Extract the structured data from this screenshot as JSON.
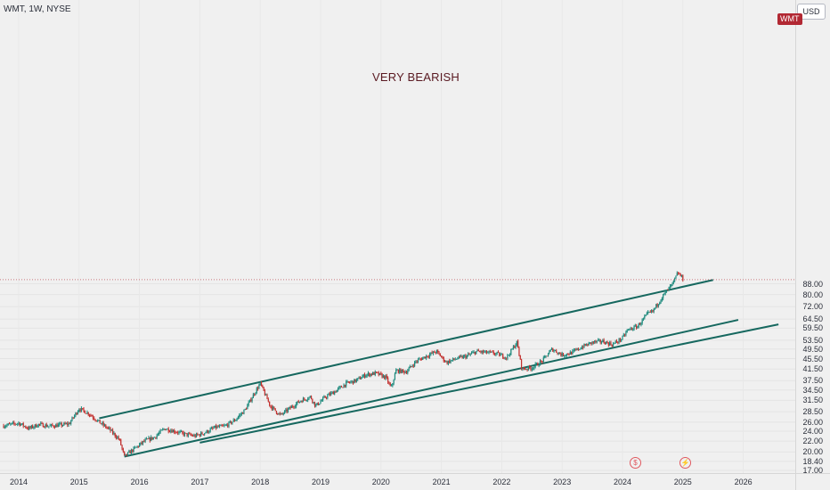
{
  "header": {
    "symbol_title": "WMT, 1W, NYSE"
  },
  "price_scale": {
    "currency": "USD",
    "last_price_tag": "WMT",
    "labels": [
      "88.00",
      "80.00",
      "72.00",
      "64.50",
      "59.50",
      "53.50",
      "49.50",
      "45.50",
      "41.50",
      "37.50",
      "34.50",
      "31.50",
      "28.50",
      "26.00",
      "24.00",
      "22.00",
      "20.00",
      "18.40",
      "17.00"
    ]
  },
  "time_scale": {
    "labels": [
      "2014",
      "2015",
      "2016",
      "2017",
      "2018",
      "2019",
      "2020",
      "2021",
      "2022",
      "2023",
      "2024",
      "2025",
      "2026"
    ]
  },
  "annotation": {
    "text": "VERY BEARISH"
  },
  "events": [
    {
      "icon": "dividend-icon",
      "glyph": "$"
    },
    {
      "icon": "earnings-icon",
      "glyph": "⚡"
    }
  ],
  "colors": {
    "up": "#1e8a7d",
    "down": "#c2312f",
    "trendline": "#16685f",
    "tag": "#b22833"
  },
  "chart_data": {
    "type": "candlestick",
    "title": "WMT, 1W, NYSE",
    "scale": "log",
    "ylim": [
      17,
      98
    ],
    "xlim": [
      "2013-10",
      "2026-06"
    ],
    "series": [
      {
        "name": "WMT",
        "points": [
          [
            "2013-10",
            25.2
          ],
          [
            "2014-01",
            25.8
          ],
          [
            "2014-03",
            24.6
          ],
          [
            "2014-05",
            25.5
          ],
          [
            "2014-07",
            25.1
          ],
          [
            "2014-09",
            25.3
          ],
          [
            "2014-11",
            25.6
          ],
          [
            "2015-01",
            29.3
          ],
          [
            "2015-03",
            28.0
          ],
          [
            "2015-05",
            26.0
          ],
          [
            "2015-07",
            24.4
          ],
          [
            "2015-09",
            22.3
          ],
          [
            "2015-10",
            19.2
          ],
          [
            "2015-12",
            20.6
          ],
          [
            "2016-02",
            22.0
          ],
          [
            "2016-04",
            22.8
          ],
          [
            "2016-06",
            24.6
          ],
          [
            "2016-08",
            24.0
          ],
          [
            "2016-10",
            23.4
          ],
          [
            "2016-12",
            23.0
          ],
          [
            "2017-02",
            23.7
          ],
          [
            "2017-04",
            24.8
          ],
          [
            "2017-06",
            25.1
          ],
          [
            "2017-08",
            26.5
          ],
          [
            "2017-10",
            29.0
          ],
          [
            "2017-12",
            34.0
          ],
          [
            "2018-01",
            36.5
          ],
          [
            "2018-03",
            30.0
          ],
          [
            "2018-05",
            27.6
          ],
          [
            "2018-07",
            29.5
          ],
          [
            "2018-09",
            31.4
          ],
          [
            "2018-11",
            32.5
          ],
          [
            "2018-12",
            30.0
          ],
          [
            "2019-02",
            32.5
          ],
          [
            "2019-04",
            34.2
          ],
          [
            "2019-06",
            36.5
          ],
          [
            "2019-08",
            37.5
          ],
          [
            "2019-10",
            39.5
          ],
          [
            "2019-12",
            40.0
          ],
          [
            "2020-02",
            38.5
          ],
          [
            "2020-03",
            35.0
          ],
          [
            "2020-04",
            41.0
          ],
          [
            "2020-06",
            40.5
          ],
          [
            "2020-08",
            44.5
          ],
          [
            "2020-10",
            46.5
          ],
          [
            "2020-12",
            48.5
          ],
          [
            "2021-02",
            44.0
          ],
          [
            "2021-04",
            45.5
          ],
          [
            "2021-06",
            46.5
          ],
          [
            "2021-08",
            48.5
          ],
          [
            "2021-10",
            48.0
          ],
          [
            "2021-12",
            47.5
          ],
          [
            "2022-02",
            46.0
          ],
          [
            "2022-04",
            52.5
          ],
          [
            "2022-05",
            41.5
          ],
          [
            "2022-07",
            42.0
          ],
          [
            "2022-09",
            44.5
          ],
          [
            "2022-11",
            49.5
          ],
          [
            "2023-01",
            47.0
          ],
          [
            "2023-03",
            48.0
          ],
          [
            "2023-05",
            50.5
          ],
          [
            "2023-07",
            52.5
          ],
          [
            "2023-09",
            53.0
          ],
          [
            "2023-11",
            51.5
          ],
          [
            "2024-01",
            54.5
          ],
          [
            "2024-02",
            58.5
          ],
          [
            "2024-04",
            60.5
          ],
          [
            "2024-06",
            67.5
          ],
          [
            "2024-07",
            69.0
          ],
          [
            "2024-09",
            79.0
          ],
          [
            "2024-11",
            88.0
          ],
          [
            "2024-12",
            97.0
          ],
          [
            "2025-01",
            92.0
          ]
        ]
      }
    ],
    "trendlines": [
      {
        "name": "upper-channel",
        "from": [
          "2015-05",
          26.9
        ],
        "to": [
          "2025-07",
          91.0
        ]
      },
      {
        "name": "lower-channel",
        "from": [
          "2015-10",
          19.2
        ],
        "to": [
          "2025-12",
          64.0
        ]
      },
      {
        "name": "lower-support",
        "from": [
          "2017-01",
          21.7
        ],
        "to": [
          "2026-08",
          61.5
        ]
      }
    ],
    "annotations": [
      {
        "text": "VERY BEARISH"
      }
    ]
  }
}
